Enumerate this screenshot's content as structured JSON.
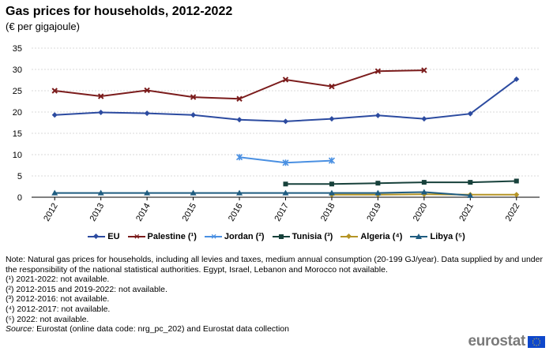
{
  "header": {
    "title": "Gas prices for households, 2012-2022",
    "subtitle": "(€ per gigajoule)"
  },
  "chart_data": {
    "type": "line",
    "title": "Gas prices for households, 2012-2022",
    "ylabel": "€ per gigajoule",
    "xlabel": "",
    "ylim": [
      0,
      35
    ],
    "yticks": [
      "0",
      "5",
      "10",
      "15",
      "20",
      "25",
      "30",
      "35"
    ],
    "categories": [
      "2012",
      "2013",
      "2014",
      "2015",
      "2016",
      "2017",
      "2018",
      "2019",
      "2020",
      "2021",
      "2022"
    ],
    "grid": true,
    "legend_position": "bottom",
    "series": [
      {
        "name": "EU",
        "legend": "EU",
        "color": "#2c4ba0",
        "marker": "diamond",
        "values": [
          19.3,
          19.9,
          19.7,
          19.3,
          18.2,
          17.8,
          18.4,
          19.2,
          18.4,
          19.6,
          27.7
        ]
      },
      {
        "name": "Palestine",
        "legend": "Palestine (¹)",
        "color": "#7b1c1c",
        "marker": "x",
        "values": [
          25.0,
          23.7,
          25.1,
          23.5,
          23.1,
          27.6,
          26.0,
          29.6,
          29.8,
          null,
          null
        ]
      },
      {
        "name": "Jordan",
        "legend": "Jordan (²)",
        "color": "#4a90e2",
        "marker": "star",
        "values": [
          null,
          null,
          null,
          null,
          9.4,
          8.1,
          8.6,
          null,
          null,
          null,
          null
        ]
      },
      {
        "name": "Tunisia",
        "legend": "Tunisia (³)",
        "color": "#17413b",
        "marker": "square",
        "values": [
          null,
          null,
          null,
          null,
          null,
          3.1,
          3.1,
          3.3,
          3.5,
          3.5,
          3.8
        ]
      },
      {
        "name": "Algeria",
        "legend": "Algeria (⁴)",
        "color": "#b59425",
        "marker": "diamond",
        "values": [
          null,
          null,
          null,
          null,
          null,
          null,
          0.6,
          0.6,
          0.7,
          0.6,
          0.6
        ]
      },
      {
        "name": "Libya",
        "legend": "Libya (⁵)",
        "color": "#1f5c80",
        "marker": "triangle",
        "values": [
          1.0,
          1.0,
          1.0,
          1.0,
          1.0,
          1.0,
          1.0,
          1.0,
          1.2,
          0.4,
          null
        ]
      }
    ]
  },
  "notes": {
    "main": "Note: Natural gas prices for households, including all levies and taxes, medium annual consumption (20-199 GJ/year). Data supplied by and under the responsibility of the national statistical authorities. Egypt, Israel, Lebanon and Morocco not available.",
    "footnotes": [
      "(¹) 2021-2022: not available.",
      "(²) 2012-2015 and 2019-2022: not available.",
      "(³) 2012-2016: not available.",
      "(⁴) 2012-2017: not available.",
      "(⁵) 2022: not available."
    ],
    "source_label": "Source:",
    "source_text": "Eurostat (online data code: nrg_pc_202) and Eurostat data collection"
  },
  "branding": {
    "logo_text": "eurostat",
    "flag_color": "#0e47cb"
  }
}
